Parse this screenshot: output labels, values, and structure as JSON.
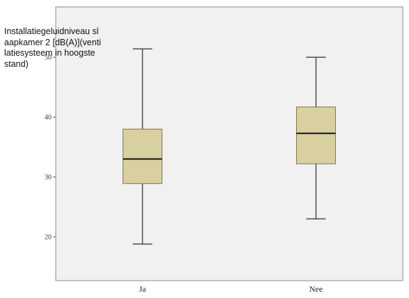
{
  "chart_data": {
    "type": "box",
    "title": "",
    "xlabel": "",
    "ylabel": "Installatiegeluidniveau slaapkamer 2 [dB(A)](ventilatiesysteem in hoogste stand)",
    "categories": [
      "Ja",
      "Nee"
    ],
    "boxes": [
      {
        "category": "Ja",
        "min": 18.8,
        "q1": 28.9,
        "median": 33.0,
        "q3": 38.0,
        "max": 51.4
      },
      {
        "category": "Nee",
        "min": 23.0,
        "q1": 32.2,
        "median": 37.3,
        "q3": 41.7,
        "max": 50.0
      }
    ],
    "yticks": [
      20,
      30,
      40,
      50
    ],
    "ytick_labels": [
      "20",
      "30",
      "40",
      "50"
    ],
    "ylim": [
      12.7,
      58.4
    ],
    "grid": false,
    "box_color": "#d9d0a0",
    "background_color": "#f1f1f1"
  }
}
